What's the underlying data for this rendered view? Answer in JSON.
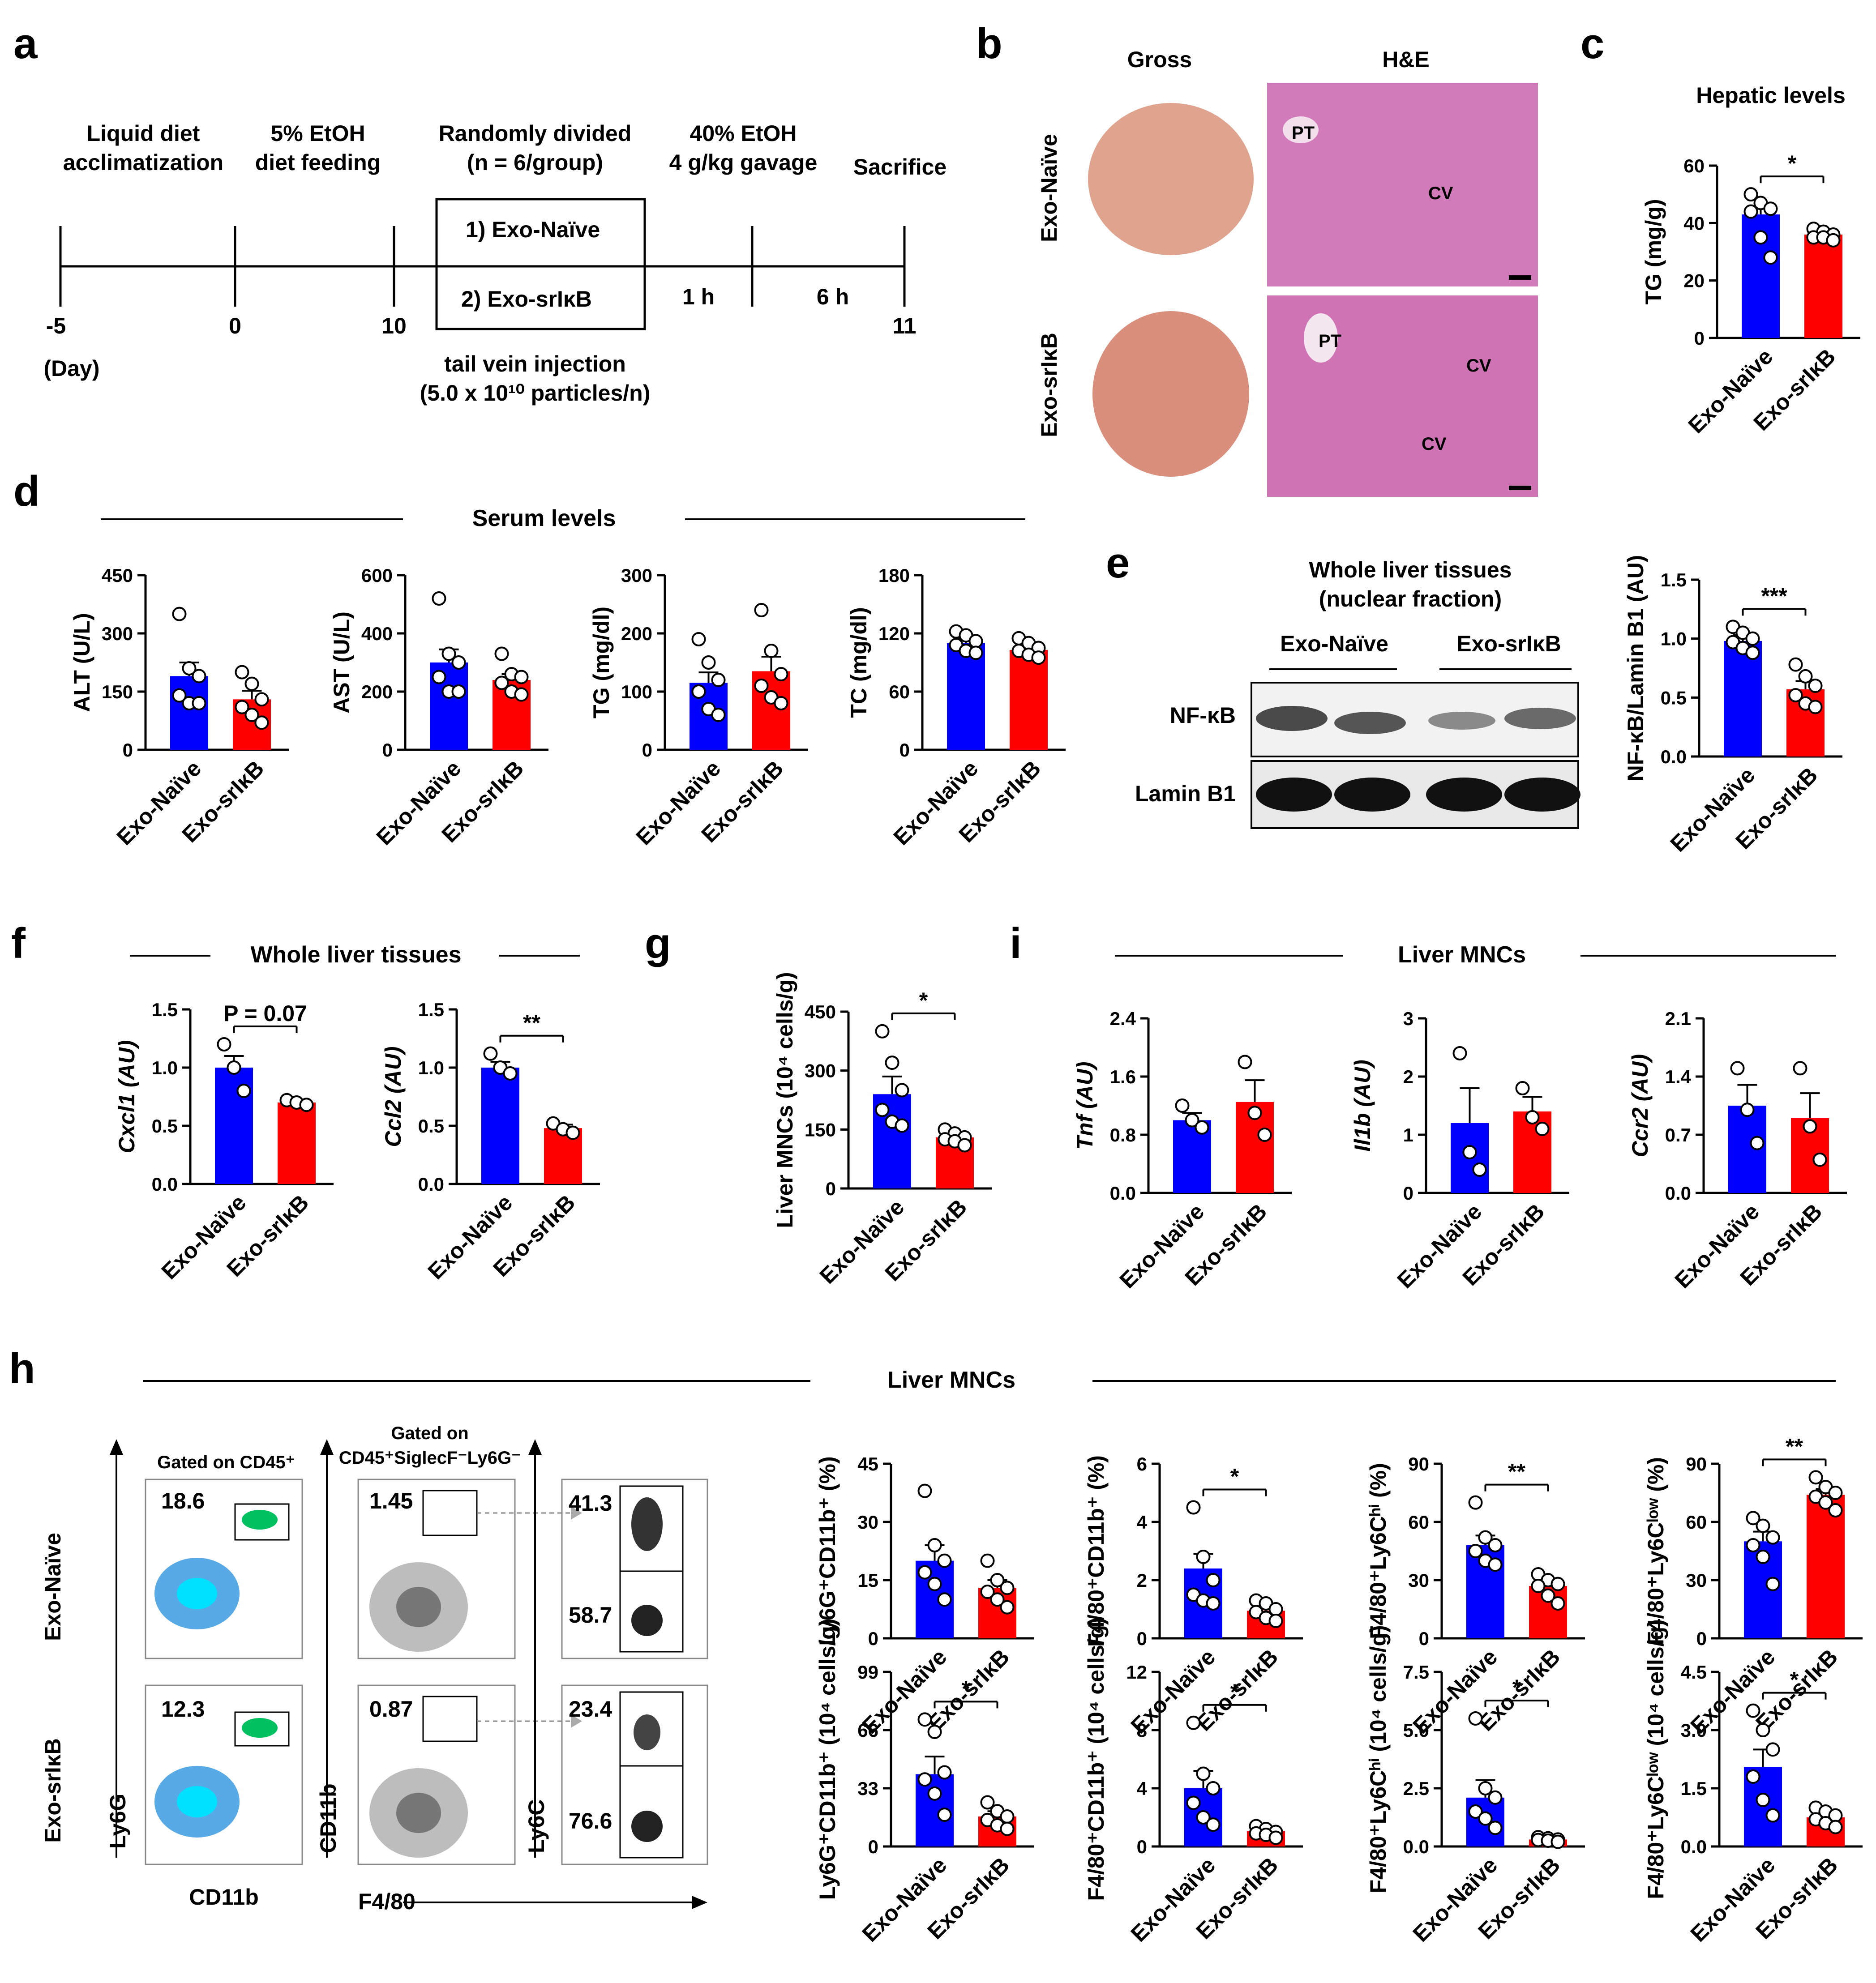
{
  "colors": {
    "naive": "#0000ff",
    "srikb": "#ff0000",
    "axis": "#000000"
  },
  "groups": [
    "Exo-Naïve",
    "Exo-srIκB"
  ],
  "panel_a": {
    "letter": "a",
    "steps": [
      {
        "day": "-5",
        "label1": "Liquid diet",
        "label2": "acclimatization"
      },
      {
        "day": "0",
        "label1": "5% EtOH",
        "label2": "diet feeding"
      },
      {
        "day": "10",
        "label1": "Randomly divided",
        "label2": "(n = 6/group)"
      },
      {
        "day": "",
        "label1": "40% EtOH",
        "label2": "4 g/kg gavage"
      },
      {
        "day": "11",
        "label1": "Sacrifice",
        "label2": ""
      }
    ],
    "day_unit": "(Day)",
    "box1": "1) Exo-Naïve",
    "box2": "2) Exo-srIκB",
    "int1": "1 h",
    "int2": "6 h",
    "inj1": "tail vein injection",
    "inj2": "(5.0 x 10¹⁰ particles/n)"
  },
  "panel_b": {
    "letter": "b",
    "col1": "Gross",
    "col2": "H&E",
    "row1": "Exo-Naïve",
    "row2": "Exo-srIκB",
    "pt": "PT",
    "cv": "CV"
  },
  "panel_d_title": "Serum levels",
  "panel_e": {
    "letter": "e",
    "title1": "Whole liver tissues",
    "title2": "(nuclear fraction)",
    "band1": "NF-κB",
    "band2": "Lamin B1"
  },
  "panel_f_title": "Whole liver tissues",
  "panel_i_title": "Liver MNCs",
  "panel_h": {
    "letter": "h",
    "title": "Liver MNCs",
    "gate1": "Gated on CD45⁺",
    "gate2a": "Gated on",
    "gate2b": "CD45⁺SiglecF⁻Ly6G⁻",
    "row1": "Exo-Naïve",
    "row2": "Exo-srIκB",
    "ax_ly6g": "Ly6G",
    "ax_cd11b": "CD11b",
    "ax_cd11b_y": "CD11b",
    "ax_f480": "F4/80",
    "ax_ly6c": "Ly6C",
    "flow_vals": {
      "n1": "18.6",
      "n2": "1.45",
      "n3": "41.3",
      "n4": "58.7",
      "s1": "12.3",
      "s2": "0.87",
      "s3": "23.4",
      "s4": "76.6"
    }
  },
  "chart_data": [
    {
      "id": "c",
      "type": "bar",
      "title": "Hepatic levels",
      "ylabel": "TG (mg/g)",
      "ylim": [
        0,
        60
      ],
      "yticks": [
        "0",
        "20",
        "40",
        "60"
      ],
      "categories": [
        "Exo-Naïve",
        "Exo-srIκB"
      ],
      "values": [
        43,
        36
      ],
      "sem": [
        3,
        1.5
      ],
      "points": [
        [
          50,
          47,
          45,
          44,
          35,
          28
        ],
        [
          38,
          37,
          36,
          35,
          35,
          34
        ]
      ],
      "sig": "*"
    },
    {
      "id": "d1",
      "type": "bar",
      "ylabel": "ALT (U/L)",
      "ylim": [
        0,
        450
      ],
      "yticks": [
        "0",
        "150",
        "300",
        "450"
      ],
      "categories": [
        "Exo-Naïve",
        "Exo-srIκB"
      ],
      "values": [
        190,
        130
      ],
      "sem": [
        35,
        22
      ],
      "points": [
        [
          350,
          210,
          190,
          140,
          120,
          120
        ],
        [
          200,
          170,
          130,
          110,
          90,
          70
        ]
      ],
      "sig": ""
    },
    {
      "id": "d2",
      "type": "bar",
      "ylabel": "AST (U/L)",
      "ylim": [
        0,
        600
      ],
      "yticks": [
        "0",
        "200",
        "400",
        "600"
      ],
      "categories": [
        "Exo-Naïve",
        "Exo-srIκB"
      ],
      "values": [
        300,
        240
      ],
      "sem": [
        45,
        20
      ],
      "points": [
        [
          520,
          330,
          300,
          250,
          200,
          200
        ],
        [
          330,
          260,
          250,
          230,
          200,
          190
        ]
      ],
      "sig": ""
    },
    {
      "id": "d3",
      "type": "bar",
      "ylabel": "TG (mg/dl)",
      "ylim": [
        0,
        300
      ],
      "yticks": [
        "0",
        "100",
        "200",
        "300"
      ],
      "categories": [
        "Exo-Naïve",
        "Exo-srIκB"
      ],
      "values": [
        115,
        135
      ],
      "sem": [
        18,
        25
      ],
      "points": [
        [
          190,
          150,
          120,
          100,
          70,
          60
        ],
        [
          240,
          170,
          130,
          110,
          90,
          80
        ]
      ],
      "sig": ""
    },
    {
      "id": "d4",
      "type": "bar",
      "ylabel": "TC (mg/dl)",
      "ylim": [
        0,
        180
      ],
      "yticks": [
        "0",
        "60",
        "120",
        "180"
      ],
      "categories": [
        "Exo-Naïve",
        "Exo-srIκB"
      ],
      "values": [
        110,
        103
      ],
      "sem": [
        5,
        4
      ],
      "points": [
        [
          122,
          118,
          112,
          108,
          102,
          100
        ],
        [
          115,
          110,
          105,
          102,
          98,
          95
        ]
      ],
      "sig": ""
    },
    {
      "id": "e",
      "type": "bar",
      "ylabel": "NF-κB/Lamin B1 (AU)",
      "ylim": [
        0,
        1.5
      ],
      "yticks": [
        "0.0",
        "0.5",
        "1.0",
        "1.5"
      ],
      "categories": [
        "Exo-Naïve",
        "Exo-srIκB"
      ],
      "values": [
        0.98,
        0.57
      ],
      "sem": [
        0.05,
        0.07
      ],
      "points": [
        [
          1.1,
          1.05,
          1.0,
          0.97,
          0.92,
          0.88
        ],
        [
          0.78,
          0.68,
          0.6,
          0.52,
          0.45,
          0.42
        ]
      ],
      "sig": "***"
    },
    {
      "id": "f1",
      "type": "bar",
      "ylabel": "Cxcl1 (AU)",
      "ylim": [
        0,
        1.5
      ],
      "yticks": [
        "0.0",
        "0.5",
        "1.0",
        "1.5"
      ],
      "categories": [
        "Exo-Naïve",
        "Exo-srIκB"
      ],
      "values": [
        1.0,
        0.7
      ],
      "sem": [
        0.1,
        0.02
      ],
      "points": [
        [
          1.2,
          1.0,
          0.8
        ],
        [
          0.72,
          0.7,
          0.68
        ]
      ],
      "sig": "P = 0.07"
    },
    {
      "id": "f2",
      "type": "bar",
      "ylabel": "Ccl2 (AU)",
      "ylim": [
        0,
        1.5
      ],
      "yticks": [
        "0.0",
        "0.5",
        "1.0",
        "1.5"
      ],
      "categories": [
        "Exo-Naïve",
        "Exo-srIκB"
      ],
      "values": [
        1.0,
        0.48
      ],
      "sem": [
        0.05,
        0.03
      ],
      "points": [
        [
          1.12,
          1.0,
          0.95
        ],
        [
          0.52,
          0.47,
          0.44
        ]
      ],
      "sig": "**"
    },
    {
      "id": "g",
      "type": "bar",
      "ylabel": "Liver MNCs (10⁴ cells/g)",
      "ylim": [
        0,
        450
      ],
      "yticks": [
        "0",
        "150",
        "300",
        "450"
      ],
      "categories": [
        "Exo-Naïve",
        "Exo-srIκB"
      ],
      "values": [
        240,
        130
      ],
      "sem": [
        45,
        10
      ],
      "points": [
        [
          400,
          320,
          250,
          200,
          170,
          160
        ],
        [
          150,
          140,
          130,
          125,
          120,
          110
        ]
      ],
      "sig": "*"
    },
    {
      "id": "i1",
      "type": "bar",
      "ylabel": "Tnf (AU)",
      "ylim": [
        0,
        2.4
      ],
      "yticks": [
        "0.0",
        "0.8",
        "1.6",
        "2.4"
      ],
      "categories": [
        "Exo-Naïve",
        "Exo-srIκB"
      ],
      "values": [
        1.0,
        1.25
      ],
      "sem": [
        0.1,
        0.3
      ],
      "points": [
        [
          1.2,
          1.0,
          0.9
        ],
        [
          1.8,
          1.1,
          0.8
        ]
      ],
      "sig": ""
    },
    {
      "id": "i2",
      "type": "bar",
      "ylabel": "Il1b (AU)",
      "ylim": [
        0,
        3
      ],
      "yticks": [
        "0",
        "1",
        "2",
        "3"
      ],
      "categories": [
        "Exo-Naïve",
        "Exo-srIκB"
      ],
      "values": [
        1.2,
        1.4
      ],
      "sem": [
        0.6,
        0.25
      ],
      "points": [
        [
          2.4,
          0.7,
          0.4
        ],
        [
          1.8,
          1.3,
          1.1
        ]
      ],
      "sig": ""
    },
    {
      "id": "i3",
      "type": "bar",
      "ylabel": "Ccr2 (AU)",
      "ylim": [
        0,
        2.1
      ],
      "yticks": [
        "0.0",
        "0.7",
        "1.4",
        "2.1"
      ],
      "categories": [
        "Exo-Naïve",
        "Exo-srIκB"
      ],
      "values": [
        1.05,
        0.9
      ],
      "sem": [
        0.25,
        0.3
      ],
      "points": [
        [
          1.5,
          1.0,
          0.6
        ],
        [
          1.5,
          0.8,
          0.4
        ]
      ],
      "sig": ""
    },
    {
      "id": "h1",
      "type": "bar",
      "ylabel": "Ly6G⁺CD11b⁺ (%)",
      "ylim": [
        0,
        45
      ],
      "yticks": [
        "0",
        "15",
        "30",
        "45"
      ],
      "categories": [
        "Exo-Naïve",
        "Exo-srIκB"
      ],
      "values": [
        20,
        13
      ],
      "sem": [
        4,
        2
      ],
      "points": [
        [
          38,
          24,
          20,
          17,
          14,
          10
        ],
        [
          20,
          15,
          13,
          12,
          10,
          8
        ]
      ],
      "sig": ""
    },
    {
      "id": "h2",
      "type": "bar",
      "ylabel": "F4/80⁺CD11b⁺ (%)",
      "ylim": [
        0,
        6
      ],
      "yticks": [
        "0",
        "2",
        "4",
        "6"
      ],
      "categories": [
        "Exo-Naïve",
        "Exo-srIκB"
      ],
      "values": [
        2.4,
        0.95
      ],
      "sem": [
        0.5,
        0.15
      ],
      "points": [
        [
          4.5,
          2.8,
          2.0,
          1.5,
          1.3,
          1.2
        ],
        [
          1.3,
          1.2,
          1.0,
          0.9,
          0.7,
          0.6
        ]
      ],
      "sig": "*"
    },
    {
      "id": "h3",
      "type": "bar",
      "ylabel": "F4/80⁺Ly6Cʰⁱ (%)",
      "ylim": [
        0,
        90
      ],
      "yticks": [
        "0",
        "30",
        "60",
        "90"
      ],
      "categories": [
        "Exo-Naïve",
        "Exo-srIκB"
      ],
      "values": [
        48,
        27
      ],
      "sem": [
        5,
        3
      ],
      "points": [
        [
          70,
          52,
          48,
          45,
          40,
          38
        ],
        [
          33,
          30,
          28,
          27,
          22,
          18
        ]
      ],
      "sig": "**"
    },
    {
      "id": "h4",
      "type": "bar",
      "ylabel": "F4/80⁺Ly6Cˡᵒʷ (%)",
      "ylim": [
        0,
        90
      ],
      "yticks": [
        "0",
        "30",
        "60",
        "90"
      ],
      "categories": [
        "Exo-Naïve",
        "Exo-srIκB"
      ],
      "values": [
        50,
        74
      ],
      "sem": [
        5,
        3
      ],
      "points": [
        [
          62,
          58,
          52,
          48,
          42,
          28
        ],
        [
          83,
          78,
          75,
          73,
          70,
          66
        ]
      ],
      "sig": "**"
    },
    {
      "id": "h5",
      "type": "bar",
      "ylabel": "Ly6G⁺CD11b⁺ (10⁴ cells/g)",
      "ylim": [
        0,
        99
      ],
      "yticks": [
        "0",
        "33",
        "66",
        "99"
      ],
      "categories": [
        "Exo-Naïve",
        "Exo-srIκB"
      ],
      "values": [
        41,
        17
      ],
      "sem": [
        10,
        3
      ],
      "points": [
        [
          72,
          65,
          42,
          38,
          30,
          18
        ],
        [
          25,
          20,
          17,
          15,
          12,
          10
        ]
      ],
      "sig": "*"
    },
    {
      "id": "h6",
      "type": "bar",
      "ylabel": "F4/80⁺CD11b⁺ (10⁴ cells/g)",
      "ylim": [
        0,
        12
      ],
      "yticks": [
        "0",
        "4",
        "8",
        "12"
      ],
      "categories": [
        "Exo-Naïve",
        "Exo-srIκB"
      ],
      "values": [
        4.0,
        1.05
      ],
      "sem": [
        1.2,
        0.15
      ],
      "points": [
        [
          8.5,
          5,
          4,
          3,
          2,
          1.5
        ],
        [
          1.4,
          1.2,
          1.0,
          0.9,
          0.8,
          0.6
        ]
      ],
      "sig": "*"
    },
    {
      "id": "h7",
      "type": "bar",
      "ylabel": "F4/80⁺Ly6Cʰⁱ (10⁴ cells/g)",
      "ylim": [
        0,
        7.5
      ],
      "yticks": [
        "0.0",
        "2.5",
        "5.0",
        "7.5"
      ],
      "categories": [
        "Exo-Naïve",
        "Exo-srIκB"
      ],
      "values": [
        2.1,
        0.3
      ],
      "sem": [
        0.75,
        0.05
      ],
      "points": [
        [
          5.5,
          2.5,
          2.1,
          1.5,
          1.2,
          0.8
        ],
        [
          0.4,
          0.35,
          0.3,
          0.28,
          0.25,
          0.2
        ]
      ],
      "sig": "*"
    },
    {
      "id": "h8",
      "type": "bar",
      "ylabel": "F4/80⁺Ly6Cˡᵒʷ (10⁴ cells/g)",
      "ylim": [
        0,
        4.5
      ],
      "yticks": [
        "0.0",
        "1.5",
        "3.0",
        "4.5"
      ],
      "categories": [
        "Exo-Naïve",
        "Exo-srIκB"
      ],
      "values": [
        2.05,
        0.75
      ],
      "sem": [
        0.45,
        0.1
      ],
      "points": [
        [
          3.5,
          3.0,
          2.5,
          1.8,
          1.2,
          0.8
        ],
        [
          1.0,
          0.9,
          0.8,
          0.7,
          0.6,
          0.5
        ]
      ],
      "sig": "*"
    }
  ]
}
